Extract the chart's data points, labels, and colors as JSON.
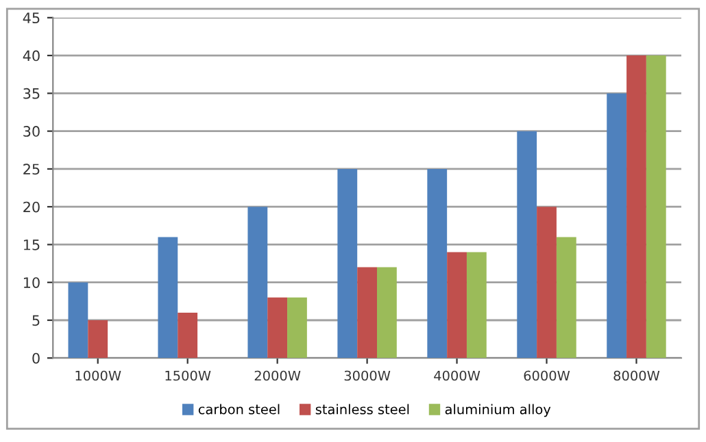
{
  "chart_data": {
    "type": "bar",
    "categories": [
      "1000W",
      "1500W",
      "2000W",
      "3000W",
      "4000W",
      "6000W",
      "8000W"
    ],
    "series": [
      {
        "name": "carbon steel",
        "color": "#4f81bd",
        "values": [
          10,
          16,
          20,
          25,
          25,
          30,
          35
        ]
      },
      {
        "name": "stainless steel",
        "color": "#c0504d",
        "values": [
          5,
          6,
          8,
          12,
          14,
          20,
          40
        ]
      },
      {
        "name": "aluminium alloy",
        "color": "#9bbb59",
        "values": [
          null,
          null,
          8,
          12,
          14,
          16,
          40
        ]
      }
    ],
    "ylim": [
      0,
      45
    ],
    "yticks": [
      0,
      5,
      10,
      15,
      20,
      25,
      30,
      35,
      40,
      45
    ],
    "grid": "y",
    "legend": "bottom"
  }
}
